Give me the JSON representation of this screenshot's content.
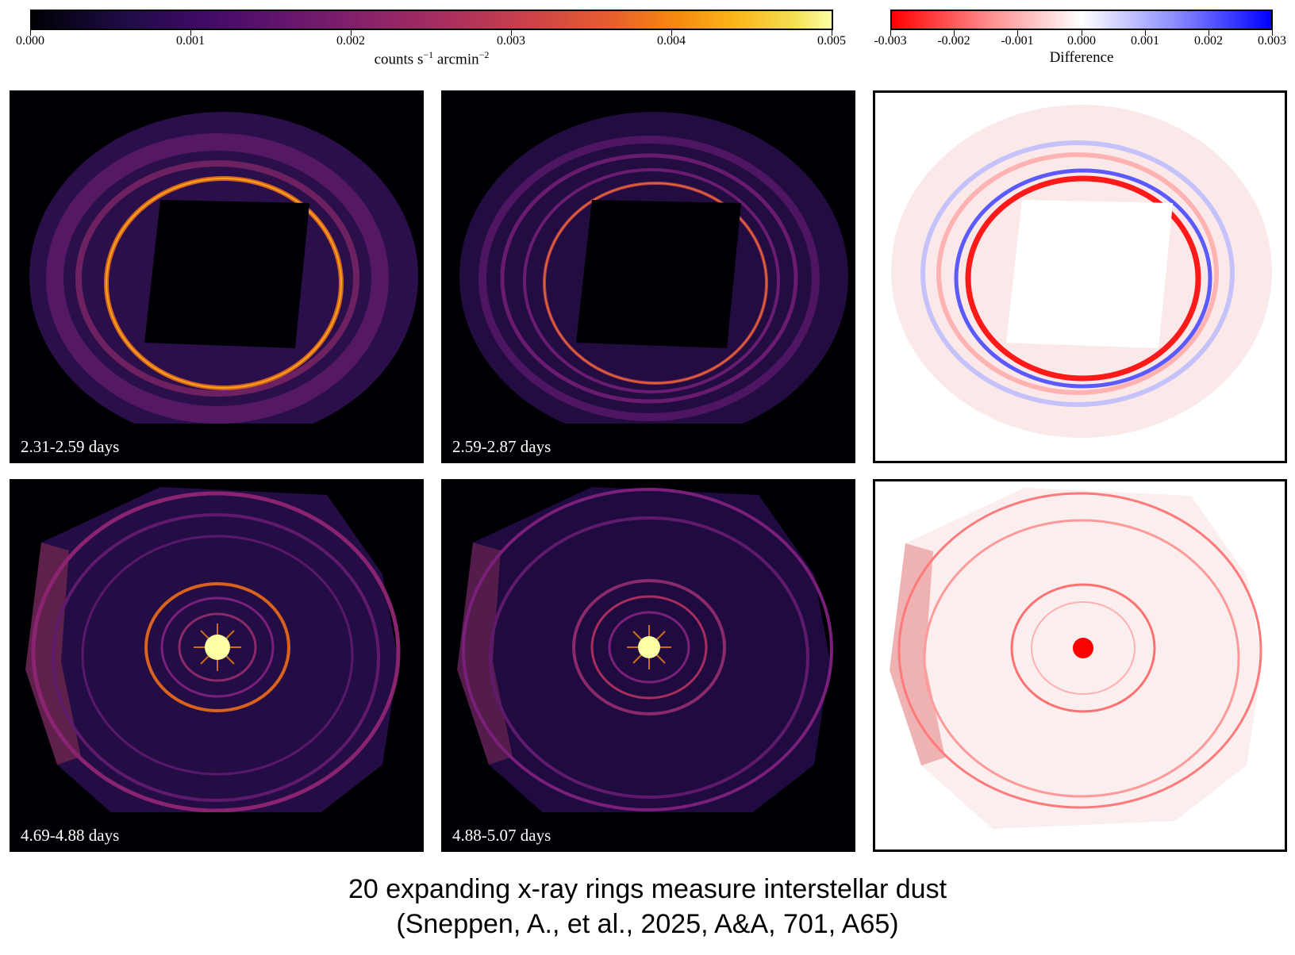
{
  "colorbar_counts": {
    "ticks": [
      "0.000",
      "0.001",
      "0.002",
      "0.003",
      "0.004",
      "0.005"
    ],
    "label_main": "counts s",
    "label_sup1": "−1",
    "label_mid": " arcmin",
    "label_sup2": "−2"
  },
  "colorbar_difference": {
    "ticks": [
      "-0.003",
      "-0.002",
      "-0.001",
      "0.000",
      "0.001",
      "0.002",
      "0.003"
    ],
    "label": "Difference"
  },
  "panels": {
    "top_left": {
      "label": "2.31-2.59 days"
    },
    "top_middle": {
      "label": "2.59-2.87 days"
    },
    "bottom_left": {
      "label": "4.69-4.88 days"
    },
    "bottom_middle": {
      "label": "4.88-5.07 days"
    }
  },
  "caption": {
    "line1": "20 expanding x-ray rings measure interstellar dust",
    "line2": "(Sneppen, A., et al., 2025, A&A, 701, A65)"
  },
  "colors": {
    "inferno_bg": "#000004",
    "ring_orange": "#f6850f",
    "ring_purple": "#7a1f7a",
    "diff_red": "#ff0000",
    "diff_blue": "#0000ff"
  }
}
